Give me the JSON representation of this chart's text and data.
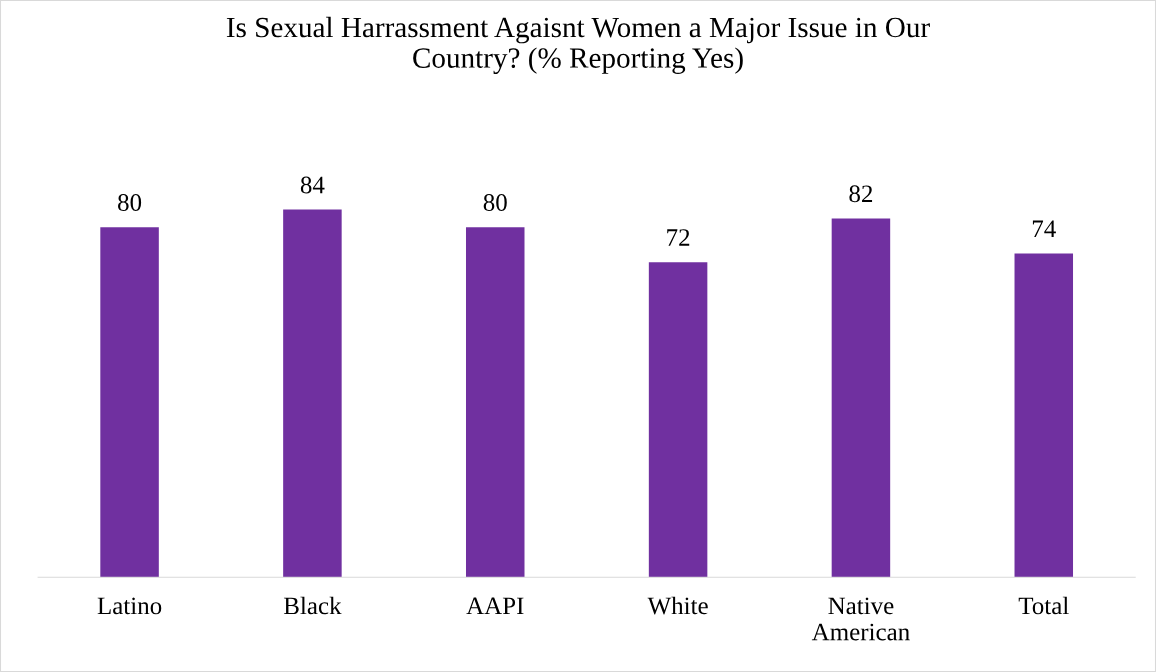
{
  "chart_data": {
    "type": "bar",
    "title": "Is Sexual Harrassment Agaisnt Women a Major Issue in Our\nCountry? (% Reporting Yes)",
    "categories": [
      "Latino",
      "Black",
      "AAPI",
      "White",
      "Native\nAmerican",
      "Total"
    ],
    "values": [
      80,
      84,
      80,
      72,
      82,
      74
    ],
    "color": "#7030a0",
    "data_labels": true,
    "grid": false,
    "legend": false
  }
}
